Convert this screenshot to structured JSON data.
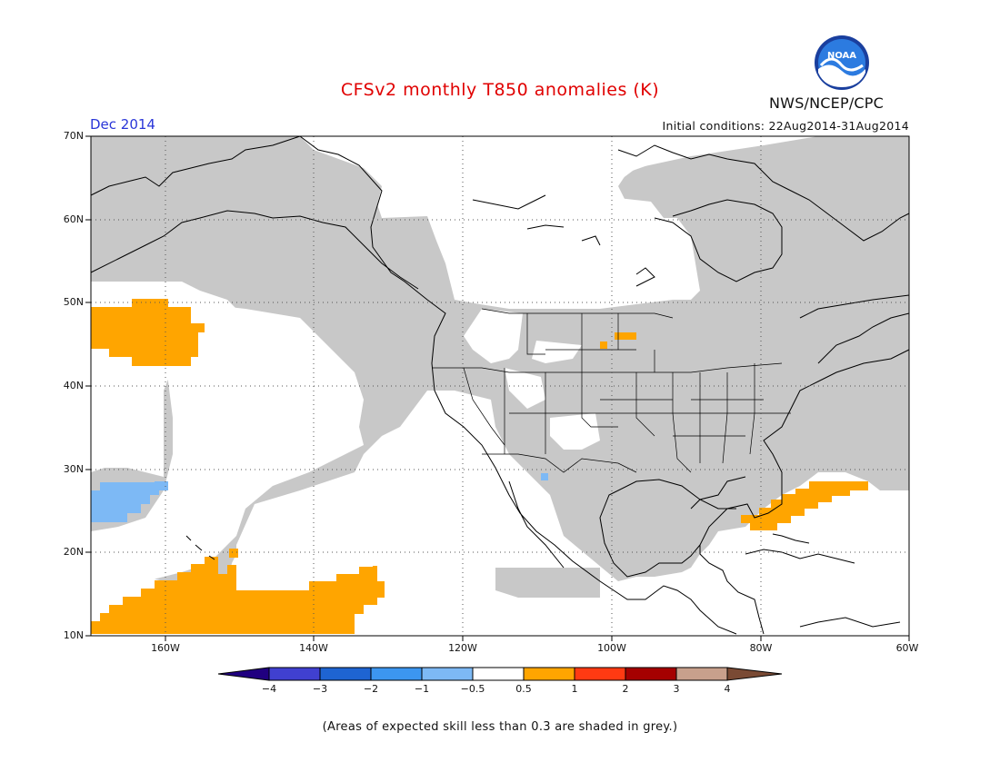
{
  "title": "CFSv2 monthly T850 anomalies (K)",
  "valid_month": "Dec 2014",
  "initial_conditions": "Initial conditions: 22Aug2014-31Aug2014",
  "organization": "NWS/NCEP/CPC",
  "logo_text": "NOAA",
  "footnote": "(Areas of expected skill less than 0.3 are shaded in grey.)",
  "colors": {
    "skill_mask_grey": "#c8c8c8",
    "land_outline": "#000000",
    "warm_0_5_to_1": "#ffa500",
    "warm_1_to_2": "#ff3a12",
    "cool_neg1_to_neg0_5": "#7db9f5"
  },
  "map": {
    "lat_labels": [
      "70N",
      "60N",
      "50N",
      "40N",
      "30N",
      "20N",
      "10N"
    ],
    "lon_labels": [
      "160W",
      "140W",
      "120W",
      "100W",
      "80W",
      "60W"
    ],
    "lat_range": [
      10,
      70
    ],
    "lon_range": [
      -170,
      -60
    ]
  },
  "colorbar": {
    "ticks": [
      "−4",
      "−3",
      "−2",
      "−1",
      "−0.5",
      "0.5",
      "1",
      "2",
      "3",
      "4"
    ],
    "colors": [
      "#200080",
      "#4040d0",
      "#1e64d2",
      "#3c96f0",
      "#7db9f5",
      "#ffffff",
      "#ffa500",
      "#ff3a12",
      "#a50000",
      "#c8a08c",
      "#7a4a34"
    ]
  }
}
